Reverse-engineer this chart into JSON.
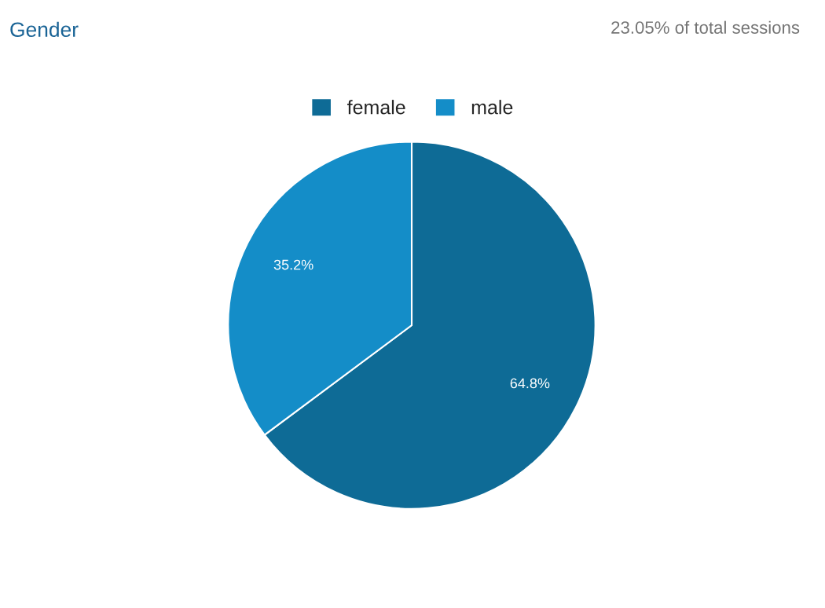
{
  "chart_data": {
    "type": "pie",
    "title": "Gender",
    "subtitle": "23.05% of total sessions",
    "categories": [
      "female",
      "male"
    ],
    "values": [
      64.8,
      35.2
    ],
    "value_labels": [
      "64.8%",
      "35.2%"
    ],
    "colors": [
      "#0e6b96",
      "#148dc8"
    ],
    "legend": "top"
  }
}
